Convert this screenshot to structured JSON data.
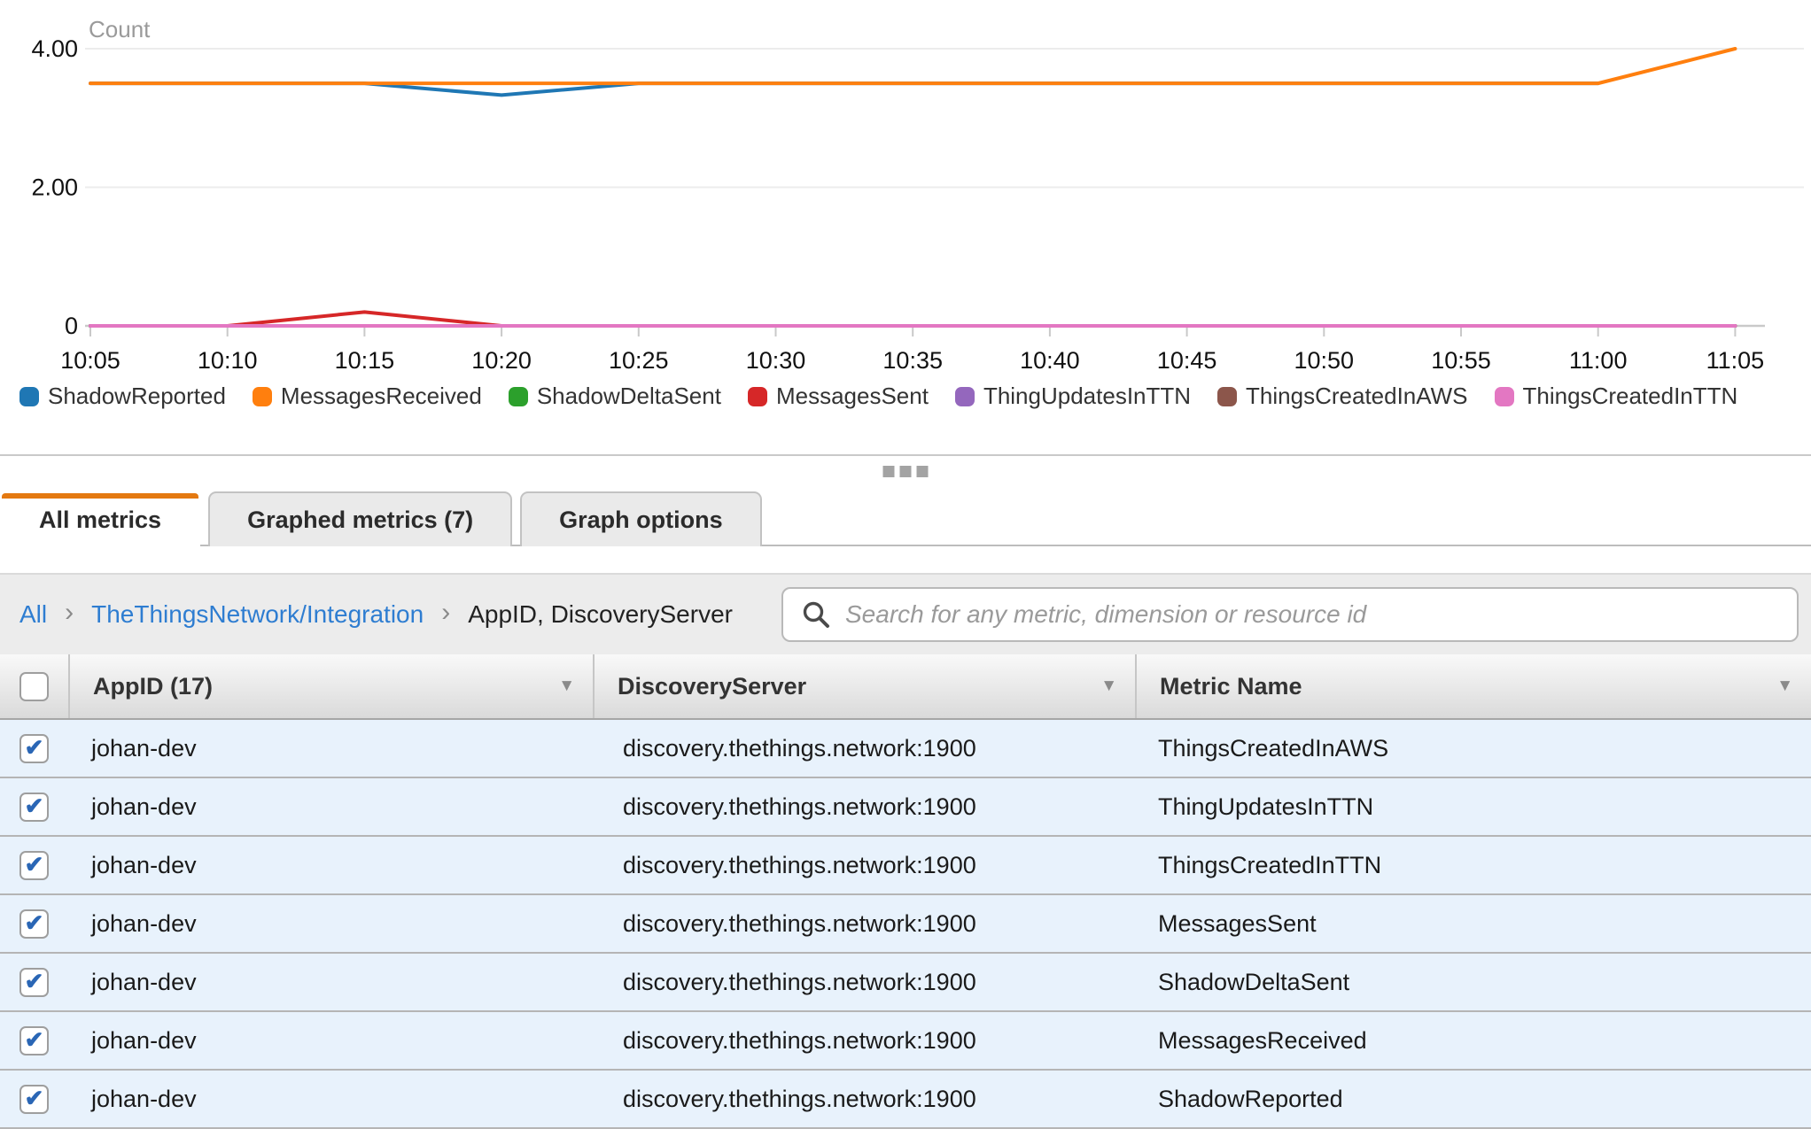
{
  "chart": {
    "unit_label": "Count",
    "y_ticks": [
      {
        "label": "4.00",
        "value": 4
      },
      {
        "label": "2.00",
        "value": 2
      },
      {
        "label": "0",
        "value": 0
      }
    ],
    "chart_data": {
      "type": "line",
      "unit": "Count",
      "x": [
        "10:05",
        "10:10",
        "10:15",
        "10:20",
        "10:25",
        "10:30",
        "10:35",
        "10:40",
        "10:45",
        "10:50",
        "10:55",
        "11:00",
        "11:05"
      ],
      "ylim": [
        0,
        4.4
      ],
      "grid": "horizontal",
      "legend_position": "bottom",
      "series": [
        {
          "name": "ShadowReported",
          "color": "#1f77b4",
          "values": [
            3.5,
            3.5,
            3.5,
            3.33,
            3.5,
            3.5,
            3.5,
            3.5,
            3.5,
            3.5,
            3.5,
            3.5,
            null
          ]
        },
        {
          "name": "MessagesReceived",
          "color": "#ff7f0e",
          "values": [
            3.5,
            3.5,
            3.5,
            3.5,
            3.5,
            3.5,
            3.5,
            3.5,
            3.5,
            3.5,
            3.5,
            3.5,
            4
          ]
        },
        {
          "name": "ShadowDeltaSent",
          "color": "#2ca02c",
          "values": [
            0,
            0,
            0,
            0,
            0,
            0,
            0,
            0,
            0,
            0,
            0,
            0,
            0
          ]
        },
        {
          "name": "MessagesSent",
          "color": "#d62728",
          "values": [
            0,
            0,
            0.2,
            0,
            0,
            0,
            0,
            0,
            0,
            0,
            0,
            0,
            0
          ]
        },
        {
          "name": "ThingUpdatesInTTN",
          "color": "#9467bd",
          "values": [
            0,
            0,
            0,
            0,
            0,
            0,
            0,
            0,
            0,
            0,
            0,
            0,
            0
          ]
        },
        {
          "name": "ThingsCreatedInAWS",
          "color": "#8c564b",
          "values": [
            0,
            0,
            0,
            0,
            0,
            0,
            0,
            0,
            0,
            0,
            0,
            0,
            0
          ]
        },
        {
          "name": "ThingsCreatedInTTN",
          "color": "#e377c2",
          "values": [
            0,
            0,
            0,
            0,
            0,
            0,
            0,
            0,
            0,
            0,
            0,
            0,
            0
          ]
        }
      ]
    }
  },
  "tabs": [
    {
      "label": "All metrics",
      "active": true
    },
    {
      "label": "Graphed metrics (7)",
      "active": false
    },
    {
      "label": "Graph options",
      "active": false
    }
  ],
  "breadcrumb": [
    {
      "label": "All",
      "type": "link"
    },
    {
      "label": "TheThingsNetwork/Integration",
      "type": "link"
    },
    {
      "label": "AppID, DiscoveryServer",
      "type": "current"
    }
  ],
  "search": {
    "value": "",
    "placeholder": "Search for any metric, dimension or resource id"
  },
  "table": {
    "select_all_checked": false,
    "columns": [
      {
        "label": "AppID (17)",
        "sortable": true
      },
      {
        "label": "DiscoveryServer",
        "sortable": true
      },
      {
        "label": "Metric Name",
        "sortable": true
      }
    ],
    "rows": [
      {
        "checked": true,
        "app_id": "johan-dev",
        "discovery_server": "discovery.thethings.network:1900",
        "metric_name": "ThingsCreatedInAWS"
      },
      {
        "checked": true,
        "app_id": "johan-dev",
        "discovery_server": "discovery.thethings.network:1900",
        "metric_name": "ThingUpdatesInTTN"
      },
      {
        "checked": true,
        "app_id": "johan-dev",
        "discovery_server": "discovery.thethings.network:1900",
        "metric_name": "ThingsCreatedInTTN"
      },
      {
        "checked": true,
        "app_id": "johan-dev",
        "discovery_server": "discovery.thethings.network:1900",
        "metric_name": "MessagesSent"
      },
      {
        "checked": true,
        "app_id": "johan-dev",
        "discovery_server": "discovery.thethings.network:1900",
        "metric_name": "ShadowDeltaSent"
      },
      {
        "checked": true,
        "app_id": "johan-dev",
        "discovery_server": "discovery.thethings.network:1900",
        "metric_name": "MessagesReceived"
      },
      {
        "checked": true,
        "app_id": "johan-dev",
        "discovery_server": "discovery.thethings.network:1900",
        "metric_name": "ShadowReported"
      }
    ]
  },
  "colors": {
    "accent": "#e47911",
    "link": "#2e7dd1",
    "row_bg": "#e8f2fc",
    "check": "#2a66b5",
    "grid": "#ececec",
    "axis": "#c9c9c9"
  }
}
